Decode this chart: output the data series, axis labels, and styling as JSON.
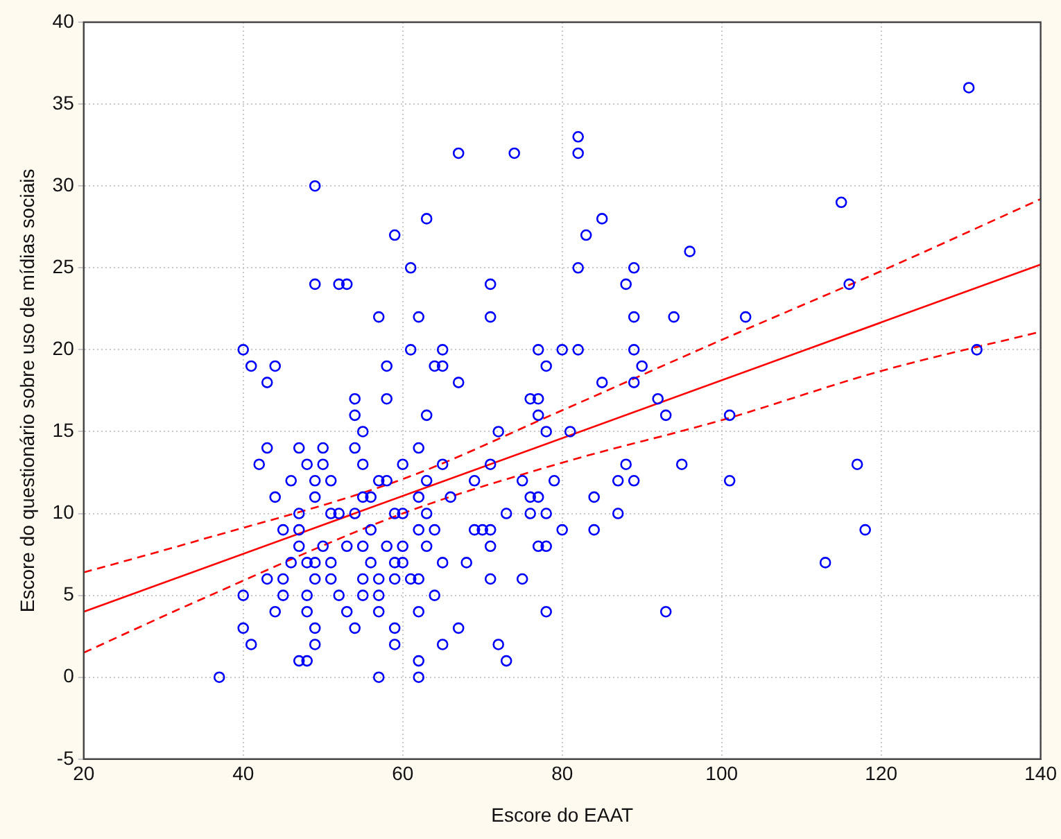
{
  "chart_data": {
    "type": "scatter",
    "xlabel": "Escore do EAAT",
    "ylabel": "Escore do questionário sobre uso de mídias sociais",
    "xlim": [
      20,
      140
    ],
    "ylim": [
      -5,
      40
    ],
    "xticks": [
      20,
      40,
      60,
      80,
      100,
      120,
      140
    ],
    "yticks": [
      -5,
      0,
      5,
      10,
      15,
      20,
      25,
      30,
      35,
      40
    ],
    "grid": true,
    "legend": false,
    "series": [
      {
        "marker": "circle",
        "color": "#0000ff",
        "x": [
          131,
          82,
          82,
          74,
          67,
          49,
          115,
          85,
          63,
          83,
          59,
          96,
          89,
          82,
          61,
          49,
          52,
          53,
          71,
          88,
          116,
          57,
          62,
          71,
          89,
          94,
          103,
          40,
          61,
          65,
          77,
          80,
          82,
          89,
          132,
          41,
          44,
          58,
          64,
          65,
          78,
          90,
          43,
          67,
          85,
          89,
          54,
          58,
          76,
          77,
          92,
          54,
          63,
          77,
          93,
          101,
          55,
          72,
          78,
          81,
          42,
          43,
          47,
          50,
          54,
          62,
          88,
          48,
          50,
          55,
          60,
          65,
          71,
          95,
          117,
          46,
          49,
          51,
          57,
          58,
          63,
          75,
          79,
          87,
          89,
          101,
          69,
          44,
          49,
          55,
          56,
          62,
          66,
          76,
          77,
          84,
          47,
          51,
          52,
          54,
          59,
          60,
          63,
          73,
          76,
          78,
          87,
          45,
          47,
          56,
          62,
          64,
          69,
          70,
          71,
          80,
          84,
          118,
          47,
          50,
          53,
          55,
          58,
          60,
          63,
          71,
          77,
          78,
          113,
          46,
          48,
          49,
          51,
          56,
          59,
          60,
          65,
          68,
          43,
          45,
          49,
          51,
          55,
          57,
          59,
          61,
          62,
          71,
          75,
          40,
          45,
          48,
          52,
          55,
          57,
          64,
          44,
          48,
          53,
          57,
          62,
          78,
          93,
          40,
          49,
          54,
          59,
          67,
          41,
          49,
          59,
          65,
          72,
          47,
          48,
          62,
          73,
          37,
          57,
          62
        ],
        "values": [
          36,
          33,
          32,
          32,
          32,
          30,
          29,
          28,
          28,
          27,
          27,
          26,
          25,
          25,
          25,
          24,
          24,
          24,
          24,
          24,
          24,
          22,
          22,
          22,
          22,
          22,
          22,
          20,
          20,
          20,
          20,
          20,
          20,
          20,
          20,
          19,
          19,
          19,
          19,
          19,
          19,
          19,
          18,
          18,
          18,
          18,
          17,
          17,
          17,
          17,
          17,
          16,
          16,
          16,
          16,
          16,
          15,
          15,
          15,
          15,
          13,
          14,
          14,
          14,
          14,
          14,
          13,
          13,
          13,
          13,
          13,
          13,
          13,
          13,
          13,
          12,
          12,
          12,
          12,
          12,
          12,
          12,
          12,
          12,
          12,
          12,
          12,
          11,
          11,
          11,
          11,
          11,
          11,
          11,
          11,
          11,
          10,
          10,
          10,
          10,
          10,
          10,
          10,
          10,
          10,
          10,
          10,
          9,
          9,
          9,
          9,
          9,
          9,
          9,
          9,
          9,
          9,
          9,
          8,
          8,
          8,
          8,
          8,
          8,
          8,
          8,
          8,
          8,
          7,
          7,
          7,
          7,
          7,
          7,
          7,
          7,
          7,
          7,
          6,
          6,
          6,
          6,
          6,
          6,
          6,
          6,
          6,
          6,
          6,
          5,
          5,
          5,
          5,
          5,
          5,
          5,
          4,
          4,
          4,
          4,
          4,
          4,
          4,
          3,
          3,
          3,
          3,
          3,
          2,
          2,
          2,
          2,
          2,
          1,
          1,
          1,
          1,
          0,
          0,
          0
        ]
      },
      {
        "type": "line",
        "color": "#ff0000",
        "line_style": "solid",
        "x": [
          20,
          140
        ],
        "values": [
          4.0,
          25.2
        ]
      },
      {
        "type": "line",
        "color": "#ff0000",
        "line_style": "dashed",
        "x": [
          20,
          34,
          60,
          80,
          100,
          120,
          140
        ],
        "values": [
          6.4,
          8.3,
          12.1,
          16.3,
          20.6,
          24.8,
          29.2
        ]
      },
      {
        "type": "line",
        "color": "#ff0000",
        "line_style": "dashed",
        "x": [
          20,
          34,
          60,
          80,
          100,
          120,
          140
        ],
        "values": [
          1.5,
          4.6,
          10.0,
          13.1,
          15.7,
          18.7,
          21.1
        ]
      }
    ]
  }
}
